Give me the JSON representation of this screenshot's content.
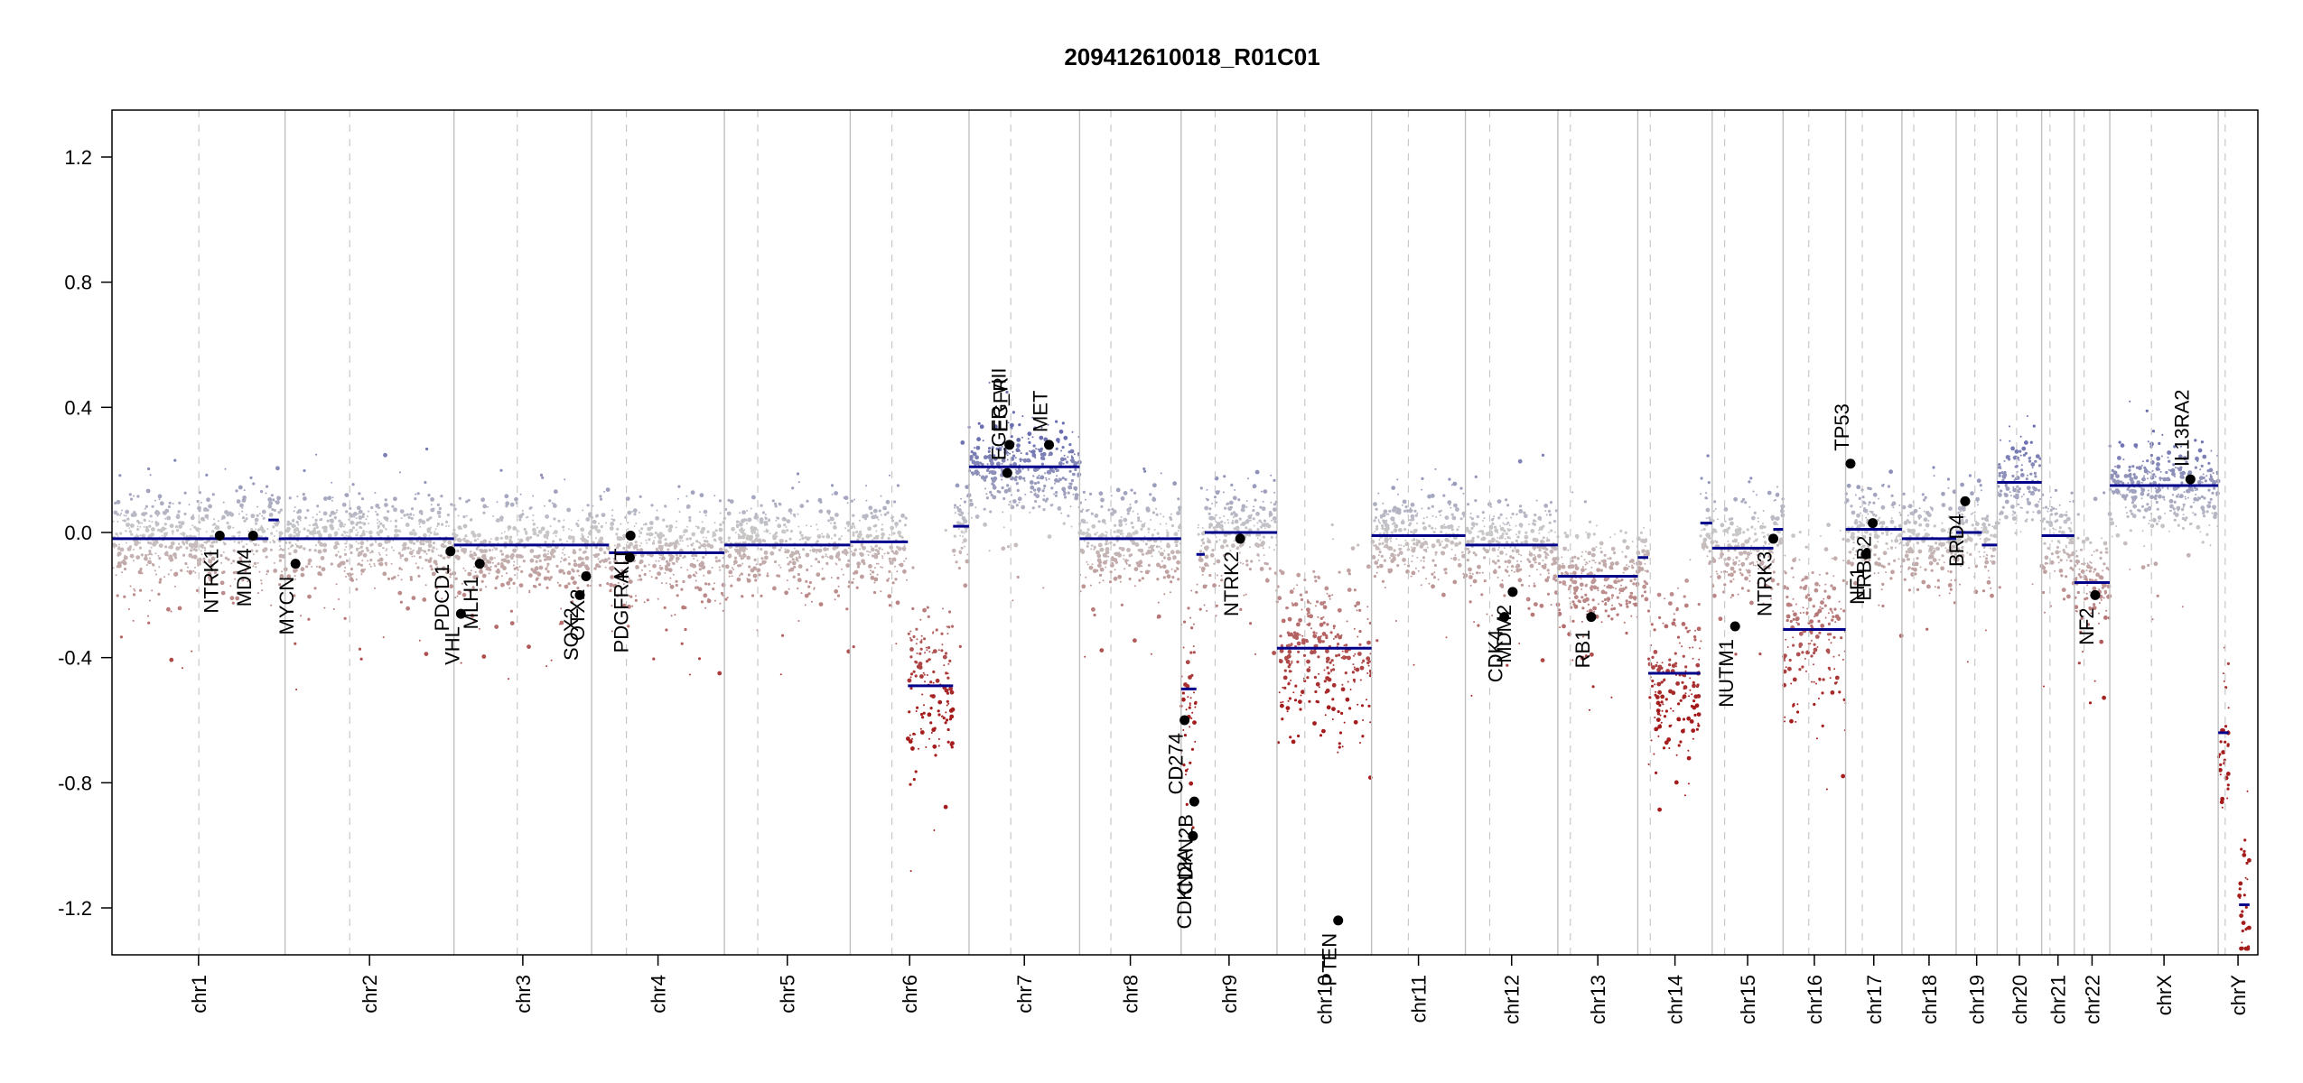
{
  "chart_data": {
    "type": "scatter",
    "title": "209412610018_R01C01",
    "xlabel": "",
    "ylabel": "",
    "ylim": [
      -1.35,
      1.35
    ],
    "yticks": [
      "1.2",
      "0.8",
      "0.4",
      "0.0",
      "-0.4",
      "-0.8",
      "-1.2"
    ],
    "ytick_values": [
      1.2,
      0.8,
      0.4,
      0.0,
      -0.4,
      -0.8,
      -1.2
    ],
    "colors": {
      "gain": "#6a6eb0",
      "neutral": "#c9c9c9",
      "loss": "#a51c1c",
      "segment": "#00008b",
      "gene_point": "#000000"
    },
    "chromosomes": [
      {
        "name": "chr1",
        "start": 0,
        "end": 249,
        "centromere": 125
      },
      {
        "name": "chr2",
        "start": 249,
        "end": 492,
        "centromere": 93
      },
      {
        "name": "chr3",
        "start": 492,
        "end": 690,
        "centromere": 91
      },
      {
        "name": "chr4",
        "start": 690,
        "end": 881,
        "centromere": 50
      },
      {
        "name": "chr5",
        "start": 881,
        "end": 1062,
        "centromere": 48
      },
      {
        "name": "chr6",
        "start": 1062,
        "end": 1233,
        "centromere": 60
      },
      {
        "name": "chr7",
        "start": 1233,
        "end": 1392,
        "centromere": 60
      },
      {
        "name": "chr8",
        "start": 1392,
        "end": 1538,
        "centromere": 45
      },
      {
        "name": "chr9",
        "start": 1538,
        "end": 1676,
        "centromere": 49
      },
      {
        "name": "chr10",
        "start": 1676,
        "end": 1812,
        "centromere": 40
      },
      {
        "name": "chr11",
        "start": 1812,
        "end": 1947,
        "centromere": 53
      },
      {
        "name": "chr12",
        "start": 1947,
        "end": 2080,
        "centromere": 35
      },
      {
        "name": "chr13",
        "start": 2080,
        "end": 2195,
        "centromere": 18
      },
      {
        "name": "chr14",
        "start": 2195,
        "end": 2302,
        "centromere": 18
      },
      {
        "name": "chr15",
        "start": 2302,
        "end": 2404,
        "centromere": 18
      },
      {
        "name": "chr16",
        "start": 2404,
        "end": 2494,
        "centromere": 37
      },
      {
        "name": "chr17",
        "start": 2494,
        "end": 2575,
        "centromere": 24
      },
      {
        "name": "chr18",
        "start": 2575,
        "end": 2653,
        "centromere": 17
      },
      {
        "name": "chr19",
        "start": 2653,
        "end": 2712,
        "centromere": 27
      },
      {
        "name": "chr20",
        "start": 2712,
        "end": 2776,
        "centromere": 28
      },
      {
        "name": "chr21",
        "start": 2776,
        "end": 2823,
        "centromere": 12
      },
      {
        "name": "chr22",
        "start": 2823,
        "end": 2874,
        "centromere": 14
      },
      {
        "name": "chrX",
        "start": 2874,
        "end": 3030,
        "centromere": 60
      },
      {
        "name": "chrY",
        "start": 3030,
        "end": 3087,
        "centromere": 10
      }
    ],
    "segments": [
      {
        "chr": "chr1",
        "x0": 0,
        "x1": 225,
        "y": -0.02
      },
      {
        "chr": "chr1",
        "x0": 225,
        "x1": 240,
        "y": 0.04
      },
      {
        "chr": "chr1",
        "x0": 240,
        "x1": 249,
        "y": -0.02
      },
      {
        "chr": "chr2",
        "x0": 249,
        "x1": 492,
        "y": -0.02
      },
      {
        "chr": "chr3",
        "x0": 492,
        "x1": 690,
        "y": -0.04
      },
      {
        "chr": "chr4",
        "x0": 690,
        "x1": 715,
        "y": -0.04
      },
      {
        "chr": "chr4",
        "x0": 715,
        "x1": 881,
        "y": -0.065
      },
      {
        "chr": "chr5",
        "x0": 881,
        "x1": 1062,
        "y": -0.04
      },
      {
        "chr": "chr6",
        "x0": 1062,
        "x1": 1145,
        "y": -0.03
      },
      {
        "chr": "chr6",
        "x0": 1145,
        "x1": 1210,
        "y": -0.49
      },
      {
        "chr": "chr6",
        "x0": 1210,
        "x1": 1233,
        "y": 0.02
      },
      {
        "chr": "chr7",
        "x0": 1233,
        "x1": 1392,
        "y": 0.21
      },
      {
        "chr": "chr8",
        "x0": 1392,
        "x1": 1538,
        "y": -0.02
      },
      {
        "chr": "chr9",
        "x0": 1538,
        "x1": 1560,
        "y": -0.5
      },
      {
        "chr": "chr9",
        "x0": 1560,
        "x1": 1572,
        "y": -0.07
      },
      {
        "chr": "chr9",
        "x0": 1572,
        "x1": 1676,
        "y": 0.0
      },
      {
        "chr": "chr10",
        "x0": 1676,
        "x1": 1812,
        "y": -0.37
      },
      {
        "chr": "chr11",
        "x0": 1812,
        "x1": 1947,
        "y": -0.01
      },
      {
        "chr": "chr12",
        "x0": 1947,
        "x1": 2080,
        "y": -0.04
      },
      {
        "chr": "chr13",
        "x0": 2080,
        "x1": 2195,
        "y": -0.14
      },
      {
        "chr": "chr14",
        "x0": 2195,
        "x1": 2210,
        "y": -0.08
      },
      {
        "chr": "chr14",
        "x0": 2210,
        "x1": 2285,
        "y": -0.45
      },
      {
        "chr": "chr14",
        "x0": 2285,
        "x1": 2302,
        "y": 0.03
      },
      {
        "chr": "chr15",
        "x0": 2302,
        "x1": 2390,
        "y": -0.05
      },
      {
        "chr": "chr15",
        "x0": 2390,
        "x1": 2404,
        "y": 0.01
      },
      {
        "chr": "chr16",
        "x0": 2404,
        "x1": 2494,
        "y": -0.31
      },
      {
        "chr": "chr17",
        "x0": 2494,
        "x1": 2575,
        "y": 0.01
      },
      {
        "chr": "chr18",
        "x0": 2575,
        "x1": 2653,
        "y": -0.02
      },
      {
        "chr": "chr19",
        "x0": 2653,
        "x1": 2690,
        "y": 0.0
      },
      {
        "chr": "chr19",
        "x0": 2690,
        "x1": 2712,
        "y": -0.04
      },
      {
        "chr": "chr20",
        "x0": 2712,
        "x1": 2776,
        "y": 0.16
      },
      {
        "chr": "chr21",
        "x0": 2776,
        "x1": 2823,
        "y": -0.01
      },
      {
        "chr": "chr22",
        "x0": 2823,
        "x1": 2874,
        "y": -0.16
      },
      {
        "chr": "chrX",
        "x0": 2874,
        "x1": 3030,
        "y": 0.15
      },
      {
        "chr": "chrY",
        "x0": 3030,
        "x1": 3045,
        "y": -0.64
      },
      {
        "chr": "chrY",
        "x0": 3060,
        "x1": 3075,
        "y": -1.19
      }
    ],
    "genes": [
      {
        "name": "NTRK1",
        "x": 155,
        "y": -0.01
      },
      {
        "name": "MDM4",
        "x": 203,
        "y": -0.01
      },
      {
        "name": "MYCN",
        "x": 264,
        "y": -0.1
      },
      {
        "name": "PDCD1",
        "x": 487,
        "y": -0.06
      },
      {
        "name": "VHL",
        "x": 502,
        "y": -0.26
      },
      {
        "name": "MLH1",
        "x": 529,
        "y": -0.1
      },
      {
        "name": "SOX2",
        "x": 673,
        "y": -0.2
      },
      {
        "name": "OTX2",
        "x": 682,
        "y": -0.14
      },
      {
        "name": "PDGFRA",
        "x": 745,
        "y": -0.08
      },
      {
        "name": "KIT",
        "x": 746,
        "y": -0.01
      },
      {
        "name": "EGFR_vIII",
        "x": 1288,
        "y": 0.19
      },
      {
        "name": "EGFR",
        "x": 1291,
        "y": 0.28
      },
      {
        "name": "MET",
        "x": 1348,
        "y": 0.28
      },
      {
        "name": "CD274",
        "x": 1543,
        "y": -0.6
      },
      {
        "name": "CDKN2A",
        "x": 1555,
        "y": -0.97
      },
      {
        "name": "CDKN2B",
        "x": 1557,
        "y": -0.86
      },
      {
        "name": "NTRK2",
        "x": 1623,
        "y": -0.02
      },
      {
        "name": "PTEN",
        "x": 1764,
        "y": -1.24
      },
      {
        "name": "CDK4",
        "x": 2003,
        "y": -0.27
      },
      {
        "name": "MDM2",
        "x": 2015,
        "y": -0.19
      },
      {
        "name": "RB1",
        "x": 2128,
        "y": -0.27
      },
      {
        "name": "NUTM1",
        "x": 2335,
        "y": -0.3
      },
      {
        "name": "NTRK3",
        "x": 2390,
        "y": -0.02
      },
      {
        "name": "TP53",
        "x": 2501,
        "y": 0.22
      },
      {
        "name": "NF1",
        "x": 2523,
        "y": -0.07
      },
      {
        "name": "ERBB2",
        "x": 2533,
        "y": 0.03
      },
      {
        "name": "BRD4",
        "x": 2666,
        "y": 0.1
      },
      {
        "name": "NF2",
        "x": 2853,
        "y": -0.2
      },
      {
        "name": "IL13RA2",
        "x": 2990,
        "y": 0.17
      }
    ]
  }
}
